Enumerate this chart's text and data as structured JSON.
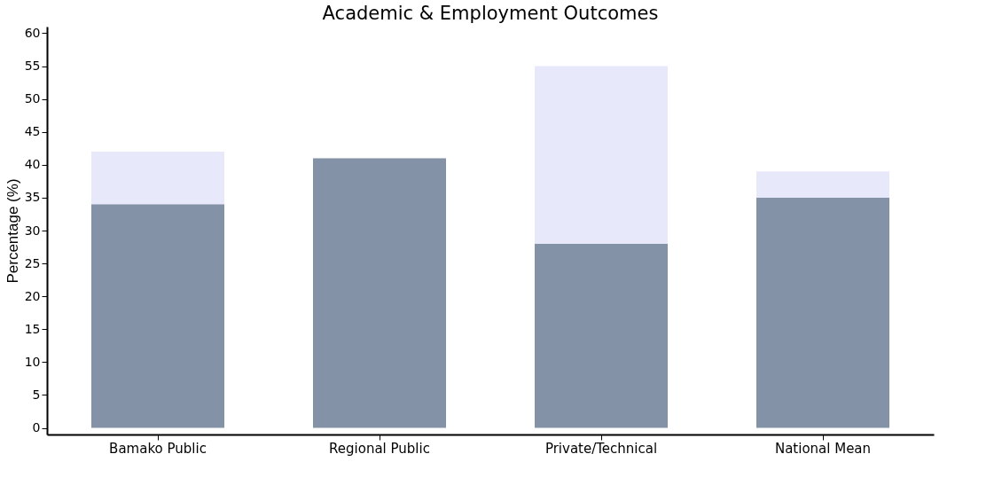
{
  "chart_data": {
    "type": "bar",
    "title": "Academic & Employment Outcomes",
    "ylabel": "Percentage (%)",
    "categories": [
      "Bamako Public",
      "Regional Public",
      "Private/Technical",
      "National Mean"
    ],
    "stacked": true,
    "series": [
      {
        "color": "#8392a6",
        "values": [
          34,
          41,
          28,
          35
        ]
      },
      {
        "color": "#e8e8fb",
        "values": [
          8,
          null,
          27,
          4
        ]
      }
    ],
    "ylim": [
      -1,
      61
    ],
    "yticks": [
      0,
      5,
      10,
      15,
      20,
      25,
      30,
      35,
      40,
      45,
      50,
      55,
      60
    ]
  }
}
